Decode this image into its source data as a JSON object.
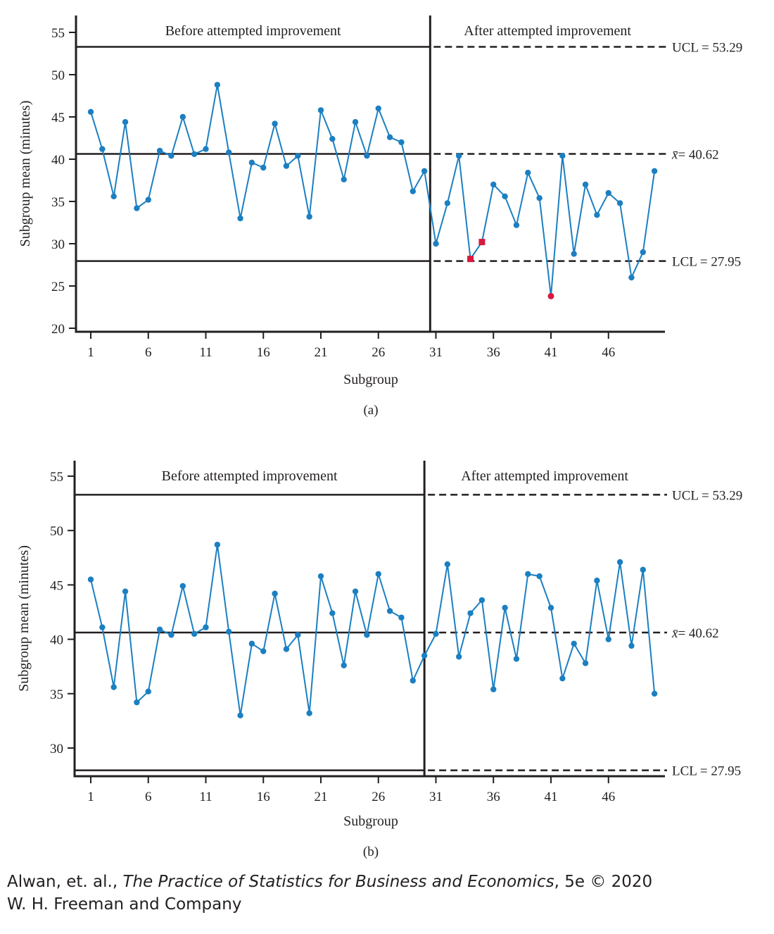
{
  "chart_data": [
    {
      "type": "line",
      "panel_label": "(a)",
      "xlabel": "Subgroup",
      "ylabel": "Subgroup mean (minutes)",
      "ylim": [
        20,
        55
      ],
      "yticks": [
        20,
        25,
        30,
        35,
        40,
        45,
        50,
        55
      ],
      "xlim": [
        0,
        50
      ],
      "xticks": [
        1,
        6,
        11,
        16,
        21,
        26,
        31,
        36,
        41,
        46
      ],
      "grid": false,
      "phase_split_after": 30.5,
      "phase_labels": [
        "Before attempted improvement",
        "After attempted improvement"
      ],
      "control_limits": {
        "ucl": {
          "value": 53.29,
          "label": "UCL = 53.29"
        },
        "center": {
          "value": 40.62,
          "label_suffix": "= 40.62"
        },
        "lcl": {
          "value": 27.95,
          "label": "LCL = 27.95"
        }
      },
      "series": [
        {
          "color": "#1b7fc1",
          "x": [
            1,
            2,
            3,
            4,
            5,
            6,
            7,
            8,
            9,
            10,
            11,
            12,
            13,
            14,
            15,
            16,
            17,
            18,
            19,
            20,
            21,
            22,
            23,
            24,
            25,
            26,
            27,
            28,
            29,
            30,
            31,
            32,
            33,
            34,
            35,
            36,
            37,
            38,
            39,
            40,
            41,
            42,
            43,
            44,
            45,
            46,
            47,
            48,
            49,
            50
          ],
          "y": [
            45.6,
            41.2,
            35.6,
            44.4,
            34.2,
            35.2,
            41.0,
            40.4,
            45.0,
            40.6,
            41.2,
            48.8,
            40.8,
            33.0,
            39.6,
            39.0,
            44.2,
            39.2,
            40.4,
            33.2,
            45.8,
            42.4,
            37.6,
            44.4,
            40.4,
            46.0,
            42.6,
            42.0,
            36.2,
            38.6,
            30.0,
            34.8,
            40.4,
            28.2,
            30.2,
            37.0,
            35.6,
            32.2,
            38.4,
            35.4,
            23.8,
            40.4,
            28.8,
            37.0,
            33.4,
            36.0,
            34.8,
            26.0,
            29.0,
            38.6
          ]
        }
      ],
      "flagged_points": [
        {
          "x": 34,
          "y": 28.2,
          "marker": "square",
          "color": "#d7193f"
        },
        {
          "x": 35,
          "y": 30.2,
          "marker": "square",
          "color": "#d7193f"
        },
        {
          "x": 41,
          "y": 23.8,
          "marker": "circle",
          "color": "#d7193f"
        }
      ]
    },
    {
      "type": "line",
      "panel_label": "(b)",
      "xlabel": "Subgroup",
      "ylabel": "Subgroup mean (minutes)",
      "ylim": [
        26,
        55
      ],
      "yticks": [
        30,
        35,
        40,
        45,
        50,
        55
      ],
      "xlim": [
        0,
        50
      ],
      "xticks": [
        1,
        6,
        11,
        16,
        21,
        26,
        31,
        36,
        41,
        46
      ],
      "grid": false,
      "phase_split_after": 30,
      "phase_labels": [
        "Before attempted improvement",
        "After attempted improvement"
      ],
      "control_limits": {
        "ucl": {
          "value": 53.29,
          "label": "UCL = 53.29"
        },
        "center": {
          "value": 40.62,
          "label_suffix": "= 40.62"
        },
        "lcl": {
          "value": 27.95,
          "label": "LCL = 27.95"
        }
      },
      "series": [
        {
          "color": "#1b7fc1",
          "x": [
            1,
            2,
            3,
            4,
            5,
            6,
            7,
            8,
            9,
            10,
            11,
            12,
            13,
            14,
            15,
            16,
            17,
            18,
            19,
            20,
            21,
            22,
            23,
            24,
            25,
            26,
            27,
            28,
            29,
            30,
            31,
            32,
            33,
            34,
            35,
            36,
            37,
            38,
            39,
            40,
            41,
            42,
            43,
            44,
            45,
            46,
            47,
            48,
            49,
            50
          ],
          "y": [
            45.5,
            41.1,
            35.6,
            44.4,
            34.2,
            35.2,
            40.9,
            40.4,
            44.9,
            40.5,
            41.1,
            48.7,
            40.7,
            33.0,
            39.6,
            38.9,
            44.2,
            39.1,
            40.4,
            33.2,
            45.8,
            42.4,
            37.6,
            44.4,
            40.4,
            46.0,
            42.6,
            42.0,
            36.2,
            38.5,
            40.5,
            46.9,
            38.4,
            42.4,
            43.6,
            35.4,
            42.9,
            38.2,
            46.0,
            45.8,
            42.9,
            36.4,
            39.6,
            37.8,
            45.4,
            40.0,
            47.1,
            39.4,
            46.4,
            35.0
          ]
        }
      ],
      "flagged_points": []
    }
  ],
  "credit": {
    "authors": "Alwan, et. al., ",
    "book_title": "The Practice of Statistics for Business and Economics",
    "edition": ", 5e © 2020",
    "publisher": "W. H. Freeman and Company"
  }
}
